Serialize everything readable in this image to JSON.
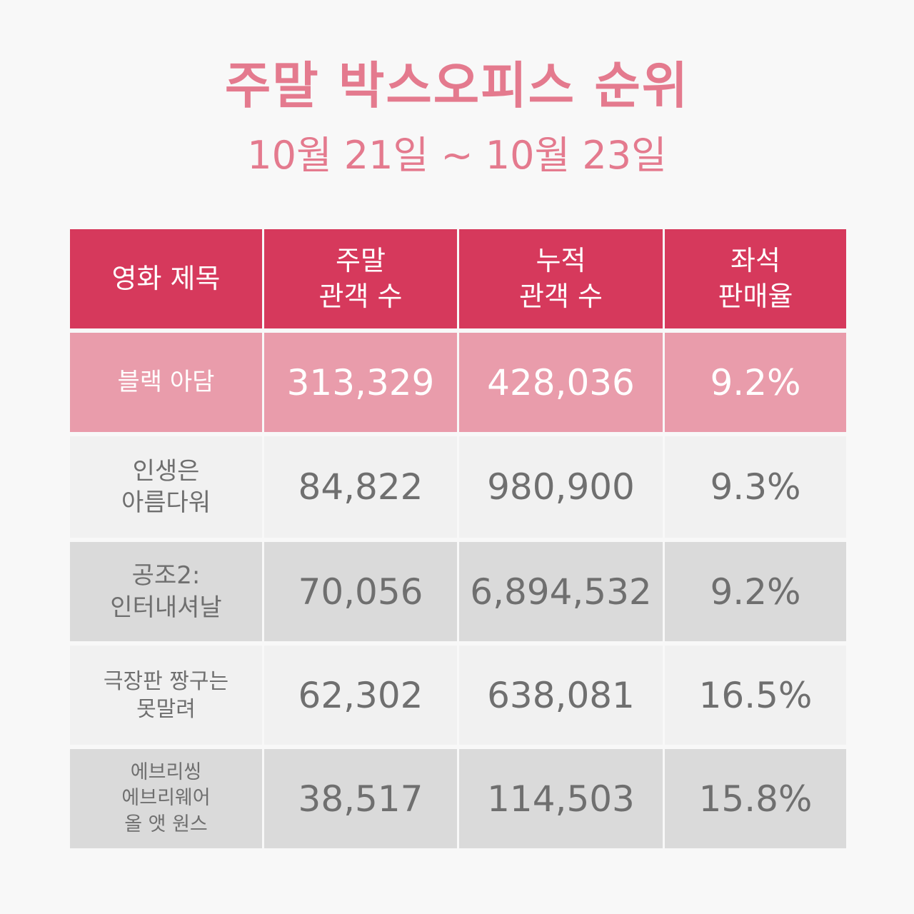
{
  "chart_data": {
    "type": "table",
    "title": "주말 박스오피스 순위",
    "subtitle": "10월 21일 ~ 10월 23일",
    "columns": [
      "영화 제목",
      "주말\n관객 수",
      "누적\n관객 수",
      "좌석\n판매율"
    ],
    "rows": [
      {
        "title": "블랙 아담",
        "weekend": "313,329",
        "cumulative": "428,036",
        "seat_rate": "9.2%"
      },
      {
        "title": "인생은\n아름다워",
        "weekend": "84,822",
        "cumulative": "980,900",
        "seat_rate": "9.3%"
      },
      {
        "title": "공조2:\n인터내셔날",
        "weekend": "70,056",
        "cumulative": "6,894,532",
        "seat_rate": "9.2%"
      },
      {
        "title": "극장판 짱구는\n못말려",
        "weekend": "62,302",
        "cumulative": "638,081",
        "seat_rate": "16.5%"
      },
      {
        "title": "에브리씽\n에브리웨어\n올 앳 원스",
        "weekend": "38,517",
        "cumulative": "114,503",
        "seat_rate": "15.8%"
      }
    ]
  },
  "colors": {
    "accent": "#e47a8e",
    "header_bg": "#d6395c",
    "highlight_row": "#e99cab",
    "row_light": "#f1f1f1",
    "row_gray": "#dadada",
    "text": "#6f6f6f"
  }
}
